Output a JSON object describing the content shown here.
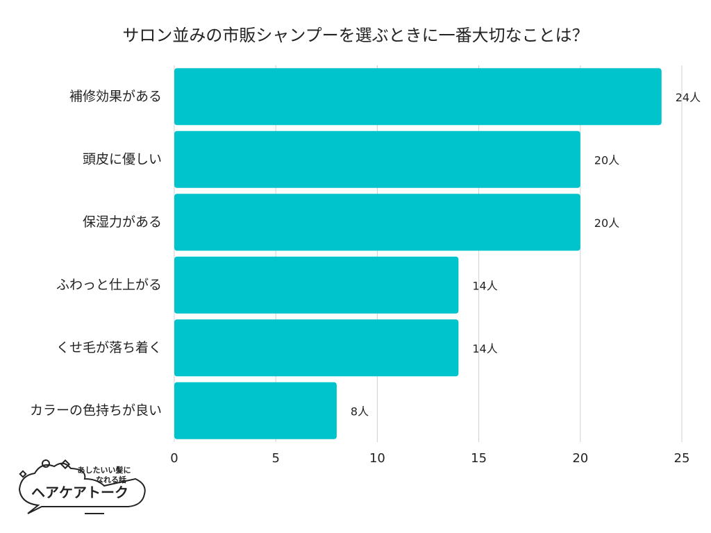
{
  "chart_data": {
    "type": "barh",
    "title": "サロン並みの市販シャンプーを選ぶときに一番大切なことは？",
    "categories": [
      "補修効果がある",
      "頭皮に優しい",
      "保湿力がある",
      "ふわっと仕上がる",
      "くせ毛が落ち着く",
      "カラーの色持ちが良い"
    ],
    "values": [
      24,
      20,
      20,
      14,
      14,
      8
    ],
    "value_labels": [
      "24人",
      "20人",
      "20人",
      "14人",
      "14人",
      "8人"
    ],
    "color": "#00c4cc",
    "xlim": [
      0,
      25
    ],
    "xticks": [
      0,
      5,
      10,
      15,
      20,
      25
    ],
    "grid": true
  },
  "logo": {
    "tagline_line1": "あしたいい髪に",
    "tagline_line2": "なれる話",
    "name": "ヘアケアトーク"
  }
}
